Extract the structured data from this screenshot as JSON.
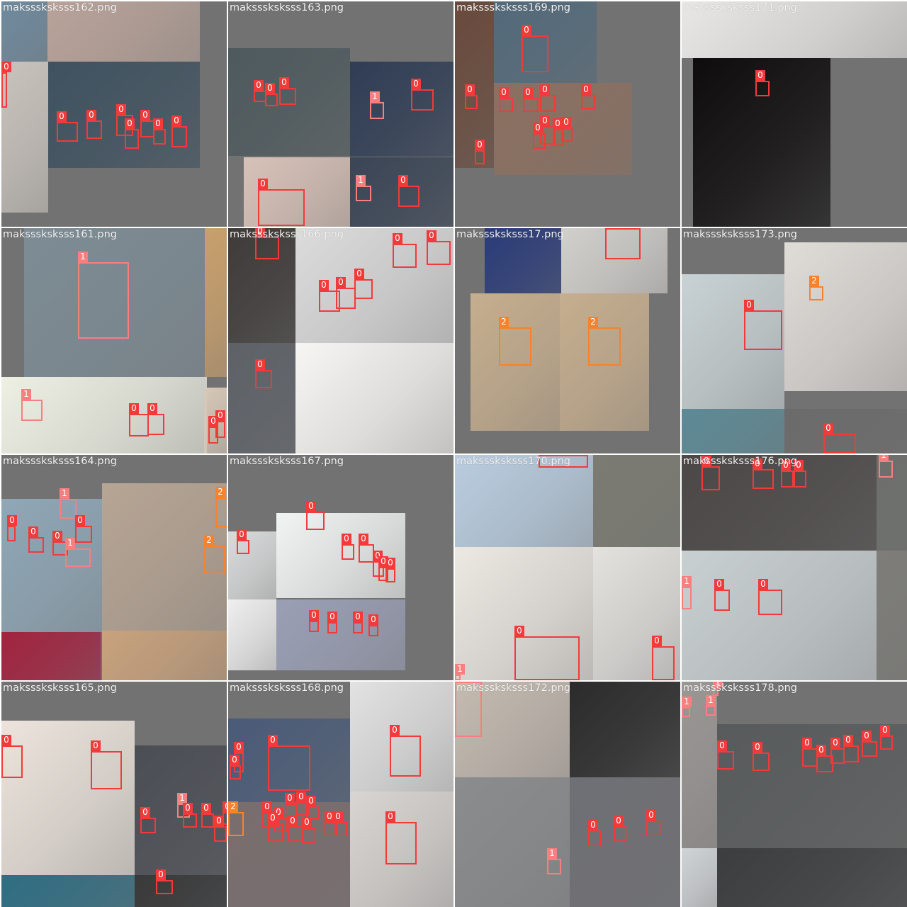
{
  "grid": {
    "background": "#727272",
    "class_colors": {
      "0": "#f23a3a",
      "1": "#f5807f",
      "2": "#f7822e"
    }
  },
  "tiles": [
    {
      "title": "maksssksksss162.png"
    },
    {
      "title": "maksssksksss163.png"
    },
    {
      "title": "maksssksksss169.png"
    },
    {
      "title": "maksssksksss171.png"
    },
    {
      "title": "maksssksksss161.png"
    },
    {
      "title": "maksssksksss166.png"
    },
    {
      "title": "maksssksksss17.png"
    },
    {
      "title": "maksssksksss173.png"
    },
    {
      "title": "maksssksksss164.png"
    },
    {
      "title": "maksssksksss167.png"
    },
    {
      "title": "maksssksksss170.png"
    },
    {
      "title": "maksssksksss176.png"
    },
    {
      "title": "maksssksksss165.png"
    },
    {
      "title": "maksssksksss168.png"
    },
    {
      "title": "maksssksksss172.png"
    },
    {
      "title": "maksssksksss178.png"
    }
  ]
}
